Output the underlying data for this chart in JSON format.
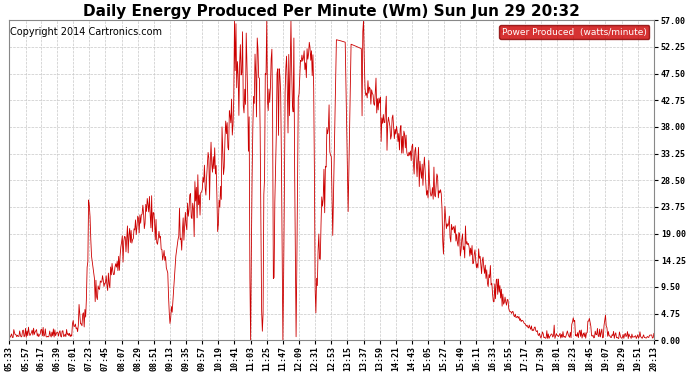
{
  "title": "Daily Energy Produced Per Minute (Wm) Sun Jun 29 20:32",
  "copyright": "Copyright 2014 Cartronics.com",
  "legend_label": "Power Produced  (watts/minute)",
  "legend_bg": "#cc0000",
  "legend_text_color": "#ffffff",
  "line_color": "#cc0000",
  "background_color": "#ffffff",
  "grid_color": "#c8c8c8",
  "ylim": [
    0,
    57.0
  ],
  "yticks": [
    0.0,
    4.75,
    9.5,
    14.25,
    19.0,
    23.75,
    28.5,
    33.25,
    38.0,
    42.75,
    47.5,
    52.25,
    57.0
  ],
  "title_fontsize": 11,
  "copyright_fontsize": 7,
  "tick_fontsize": 6,
  "figwidth": 6.9,
  "figheight": 3.75,
  "dpi": 100
}
